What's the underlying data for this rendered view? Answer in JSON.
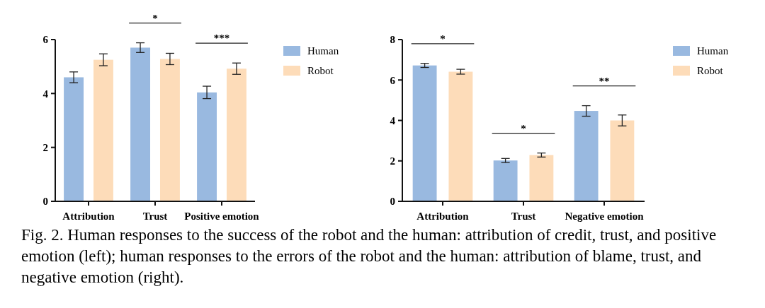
{
  "chart_data": [
    {
      "type": "bar",
      "categories": [
        "Attribution",
        "Trust",
        "Positive emotion"
      ],
      "series": [
        {
          "name": "Human",
          "color": "#99b9e0",
          "values": [
            4.6,
            5.7,
            4.04
          ],
          "errors": [
            0.2,
            0.18,
            0.23
          ]
        },
        {
          "name": "Robot",
          "color": "#fddcb9",
          "values": [
            5.25,
            5.28,
            4.92
          ],
          "errors": [
            0.22,
            0.21,
            0.21
          ]
        }
      ],
      "ylim": [
        0,
        6
      ],
      "yticks": [
        0,
        2,
        4,
        6
      ],
      "legend": "top right",
      "annotations": [
        "*",
        "***",
        "Fig. 2.  Human responses to the success of the robot and the human: attribution of credit, trust, and positive emotion (left); human responses to the errors of the robot and the human: attribution of blame, trust, and negative emotion (right)."
      ]
    },
    {
      "type": "bar",
      "categories": [
        "Attribution",
        "Trust",
        "Negative emotion"
      ],
      "series": [
        {
          "name": "Human",
          "color": "#99b9e0",
          "values": [
            6.72,
            2.02,
            4.47
          ],
          "errors": [
            0.1,
            0.1,
            0.26
          ]
        },
        {
          "name": "Robot",
          "color": "#fddcb9",
          "values": [
            6.41,
            2.29,
            4.0
          ],
          "errors": [
            0.12,
            0.1,
            0.27
          ]
        }
      ],
      "ylim": [
        0,
        8
      ],
      "yticks": [
        0,
        2,
        4,
        6,
        8
      ],
      "legend": "top right",
      "annotations": [
        "*",
        "*",
        "**"
      ]
    }
  ]
}
